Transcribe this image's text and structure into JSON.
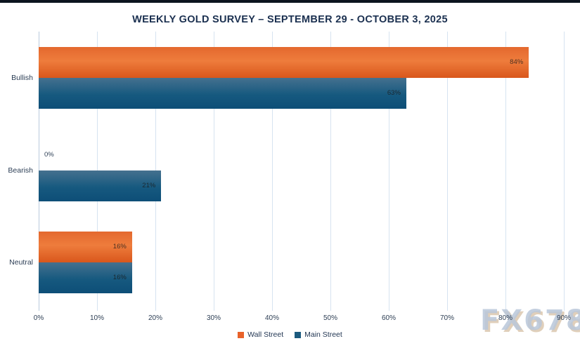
{
  "title": "WEEKLY GOLD SURVEY – SEPTEMBER 29 - OCTOBER 3, 2025",
  "chart_data": {
    "type": "bar",
    "orientation": "horizontal",
    "title": "WEEKLY GOLD SURVEY – SEPTEMBER 29 - OCTOBER 3, 2025",
    "categories": [
      "Bullish",
      "Bearish",
      "Neutral"
    ],
    "series": [
      {
        "name": "Wall Street",
        "color": "#e8622a",
        "values": [
          84,
          0,
          16
        ]
      },
      {
        "name": "Main Street",
        "color": "#1b5a7e",
        "values": [
          63,
          21,
          16
        ]
      }
    ],
    "value_labels": {
      "wall_street": [
        "84%",
        "0%",
        "16%"
      ],
      "main_street": [
        "63%",
        "21%",
        "16%"
      ]
    },
    "xlim": [
      0,
      90
    ],
    "x_tick_values": [
      0,
      10,
      20,
      30,
      40,
      50,
      60,
      70,
      80,
      90
    ],
    "x_tick_labels": [
      "0%",
      "10%",
      "20%",
      "30%",
      "40%",
      "50%",
      "60%",
      "70%",
      "80%",
      "90%"
    ],
    "grid": true,
    "legend_position": "bottom"
  },
  "watermark": {
    "text": "FX678"
  },
  "colors": {
    "top_bar": "#0c141f",
    "title": "#1b3050",
    "gridline": "#d6e3f0",
    "axis_line": "#b9cbdd",
    "tick_label": "#2e3f55",
    "wall_street_bar": "#e8622a",
    "main_street_bar": "#16597f"
  }
}
